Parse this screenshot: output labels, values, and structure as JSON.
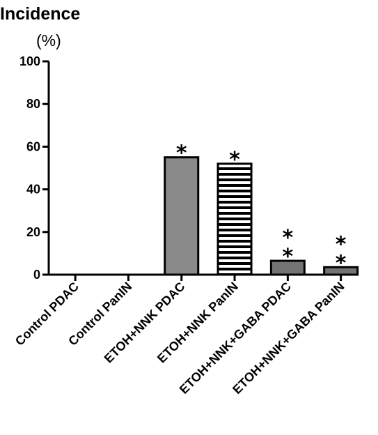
{
  "chart_data": {
    "type": "bar",
    "title": "Incidence",
    "ylabel": "(%)",
    "xlabel": "",
    "ylim": [
      0,
      100
    ],
    "yticks": [
      "0",
      "20",
      "40",
      "60",
      "80",
      "100"
    ],
    "categories": [
      "Control PDAC",
      "Control PanIN",
      "ETOH+NNK PDAC",
      "ETOH+NNK PanIN",
      "ETOH+NNK+GABA PDAC",
      "ETOH+NNK+GABA PanIN"
    ],
    "values": [
      0,
      0,
      55,
      52,
      6.5,
      3.5
    ],
    "fills": [
      "none",
      "none",
      "solid-gray",
      "horizontal-stripes",
      "solid-darkgray",
      "solid-darkgray"
    ],
    "significance": [
      "",
      "",
      "*",
      "*",
      "**",
      "**"
    ],
    "grid": false,
    "legend": "none"
  },
  "colors": {
    "bar_gray": "#8a8a8a",
    "bar_dark_gray": "#737373",
    "stripe_black": "#000000",
    "axis": "#000000"
  }
}
